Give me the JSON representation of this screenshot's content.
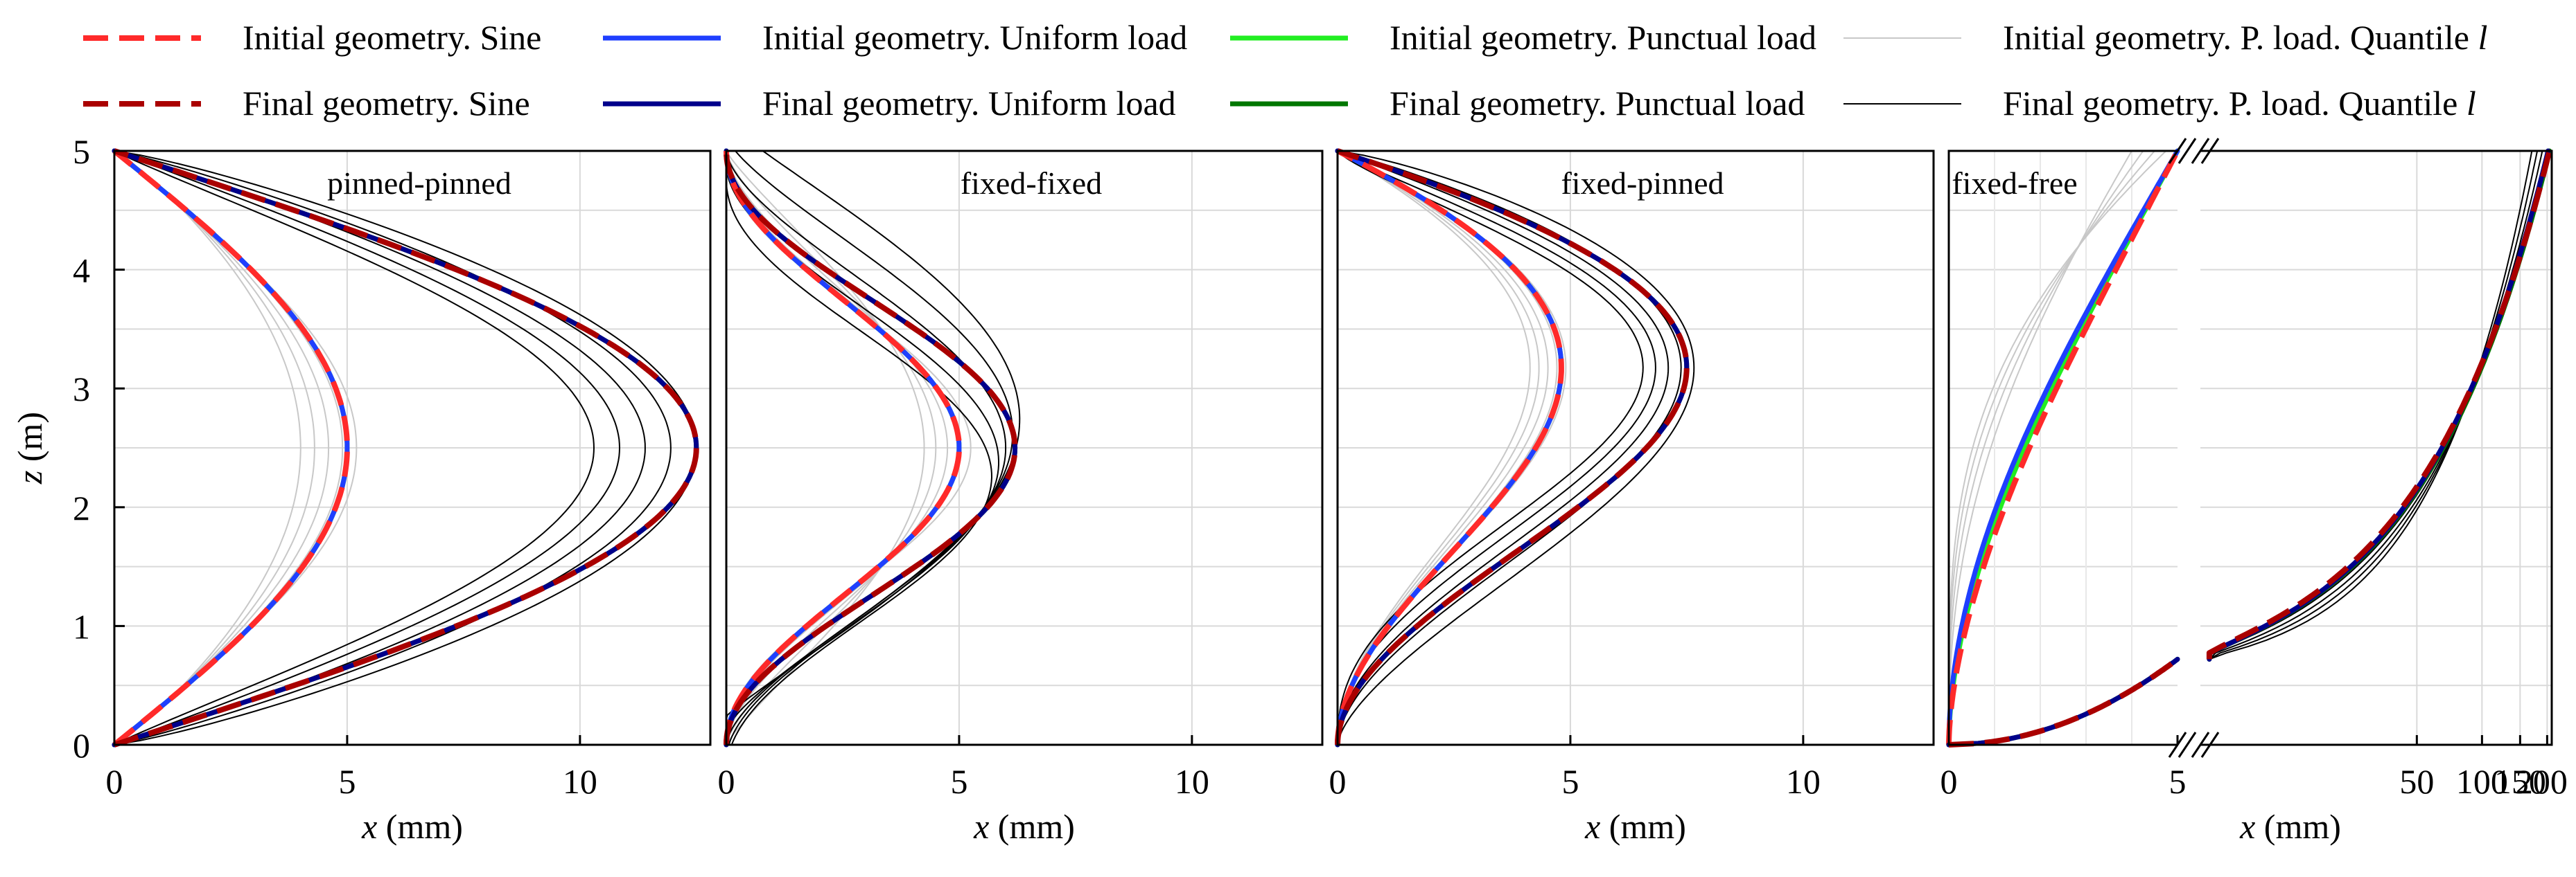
{
  "figure": {
    "legend": [
      {
        "key": "init_sine",
        "label": "Initial geometry. Sine",
        "color": "#ff2a2a",
        "dash": "long"
      },
      {
        "key": "final_sine",
        "label": "Final geometry. Sine",
        "color": "#aa0000",
        "dash": "long"
      },
      {
        "key": "init_uniform",
        "label": "Initial geometry. Uniform load",
        "color": "#1f3fff",
        "dash": "solid"
      },
      {
        "key": "final_uniform",
        "label": "Final geometry. Uniform load",
        "color": "#00008b",
        "dash": "solid"
      },
      {
        "key": "init_punctual",
        "label": "Initial geometry. Punctual load",
        "color": "#22ee22",
        "dash": "solid"
      },
      {
        "key": "final_punctual",
        "label": "Final geometry. Punctual load",
        "color": "#007700",
        "dash": "solid"
      },
      {
        "key": "init_quantile",
        "label": "Initial geometry. P. load. Quantile ",
        "italic_suffix": "l",
        "color": "#c8c8c8",
        "dash": "thin"
      },
      {
        "key": "final_quantile",
        "label": "Final geometry. P. load. Quantile ",
        "italic_suffix": "l",
        "color": "#000000",
        "dash": "thin"
      }
    ],
    "y_axis": {
      "label_italic": "z",
      "label_rest": " (m)",
      "ticks": [
        "0",
        "1",
        "2",
        "3",
        "4",
        "5"
      ]
    },
    "x_axis": {
      "label_italic": "x",
      "label_rest": " (mm)"
    }
  },
  "chart_data": [
    {
      "type": "line",
      "title": "pinned-pinned",
      "xlabel": "x (mm)",
      "ylabel": "z (m)",
      "xlim": [
        0,
        12.8
      ],
      "ylim": [
        0,
        5
      ],
      "xticks": [
        "0",
        "5",
        "10"
      ],
      "initial_max_mm": 5.0,
      "final_max_mm": 12.5,
      "peak_z_m": 2.5
    },
    {
      "type": "line",
      "title": "fixed-fixed",
      "xlabel": "x (mm)",
      "ylabel": "z (m)",
      "xlim": [
        0,
        12.8
      ],
      "ylim": [
        0,
        5
      ],
      "xticks": [
        "0",
        "5",
        "10"
      ],
      "initial_max_mm": 5.0,
      "final_max_mm": 6.2,
      "peak_z_m": 2.5
    },
    {
      "type": "line",
      "title": "fixed-pinned",
      "xlabel": "x (mm)",
      "ylabel": "z (m)",
      "xlim": [
        0,
        12.8
      ],
      "ylim": [
        0,
        5
      ],
      "xticks": [
        "0",
        "5",
        "10"
      ],
      "initial_max_mm": 5.0,
      "final_max_mm": 7.8,
      "peak_z_m": 2.9
    },
    {
      "type": "line",
      "title": "fixed-free",
      "xlabel": "x (mm)",
      "ylabel": "z (m)",
      "xlim": [
        0,
        210
      ],
      "ylim": [
        0,
        5
      ],
      "broken_x_axis": true,
      "xticks": [
        "0",
        "5",
        "50",
        "100",
        "150",
        "200"
      ],
      "initial_top_mm": 5.0,
      "final_top_mm": 200
    }
  ]
}
